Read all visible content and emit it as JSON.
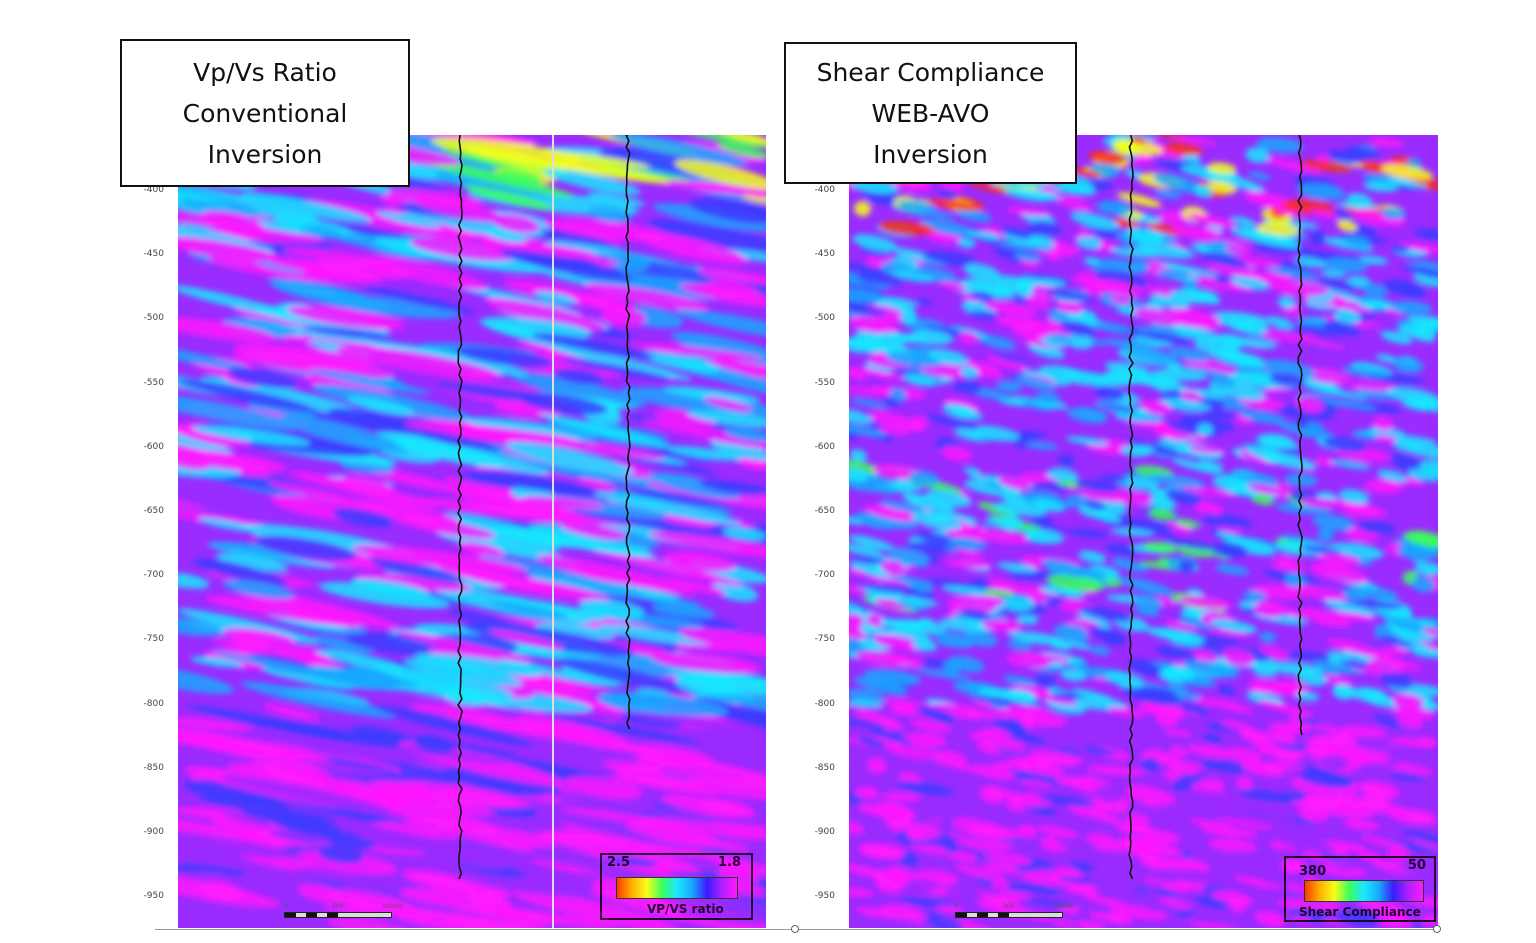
{
  "panels": [
    {
      "title_lines": [
        "Vp/Vs Ratio",
        "Conventional",
        "Inversion"
      ],
      "depth_ticks": [
        "-400",
        "-450",
        "-500",
        "-550",
        "-600",
        "-650",
        "-700",
        "-750",
        "-800",
        "-850",
        "-900",
        "-950"
      ],
      "colorbar": {
        "min_label": "2.5",
        "max_label": "1.8",
        "label": "VP/VS ratio"
      },
      "scalebar": {
        "labels": [
          "0",
          "500",
          "1000m"
        ]
      }
    },
    {
      "title_lines": [
        "Shear Compliance",
        "WEB-AVO",
        "Inversion"
      ],
      "depth_ticks": [
        "-400",
        "-450",
        "-500",
        "-550",
        "-600",
        "-650",
        "-700",
        "-750",
        "-800",
        "-850",
        "-900",
        "-950"
      ],
      "colorbar": {
        "min_label": "380",
        "max_label": "50",
        "label": "Shear Compliance"
      },
      "scalebar": {
        "labels": [
          "0",
          "500",
          "1000m"
        ]
      }
    }
  ],
  "colors": {
    "magenta": "#ff1aff",
    "purple": "#9a2cff",
    "blue": "#3a3cff",
    "cyan": "#19e8ff",
    "green": "#3cff5a",
    "yellow": "#f6ff1a",
    "red": "#ff2a10"
  }
}
